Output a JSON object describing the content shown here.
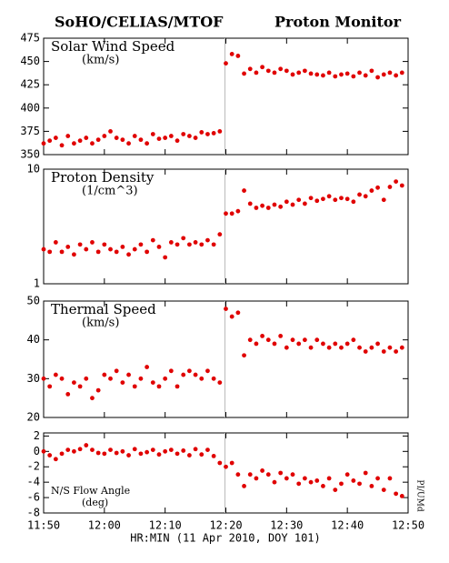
{
  "header": {
    "left": "SoHO/CELIAS/MTOF",
    "right": "Proton Monitor",
    "xlabel": "HR:MIN (11 Apr 2010, DOY 101)",
    "credit": "PI/UMd"
  },
  "chart_data": [
    {
      "type": "scatter",
      "title": "Solar Wind Speed",
      "unit": "(km/s)",
      "label_corner": "top",
      "color": "#e00000",
      "x": [
        710,
        711,
        712,
        713,
        714,
        715,
        716,
        717,
        718,
        719,
        720,
        721,
        722,
        723,
        724,
        725,
        726,
        727,
        728,
        729,
        730,
        731,
        732,
        733,
        734,
        735,
        736,
        737,
        738,
        739,
        740,
        741,
        742,
        743,
        744,
        745,
        746,
        747,
        748,
        749,
        750,
        751,
        752,
        753,
        754,
        755,
        756,
        757,
        758,
        759,
        760,
        761,
        762,
        763,
        764,
        765,
        766,
        767,
        768,
        769
      ],
      "values": [
        362,
        365,
        368,
        360,
        370,
        362,
        365,
        368,
        362,
        366,
        370,
        375,
        368,
        366,
        362,
        370,
        366,
        362,
        372,
        367,
        368,
        370,
        365,
        372,
        370,
        368,
        374,
        372,
        373,
        375,
        448,
        458,
        456,
        437,
        442,
        438,
        444,
        440,
        438,
        442,
        440,
        436,
        438,
        440,
        437,
        436,
        435,
        438,
        434,
        436,
        437,
        434,
        438,
        435,
        440,
        433,
        436,
        438,
        435,
        438
      ],
      "xlim": [
        710,
        770
      ],
      "ylim": [
        350,
        475
      ],
      "yticks": [
        350,
        375,
        400,
        425,
        450,
        475
      ]
    },
    {
      "type": "scatter",
      "title": "Proton Density",
      "unit": "(1/cm^3)",
      "label_corner": "top",
      "color": "#e00000",
      "log": true,
      "x": [
        710,
        711,
        712,
        713,
        714,
        715,
        716,
        717,
        718,
        719,
        720,
        721,
        722,
        723,
        724,
        725,
        726,
        727,
        728,
        729,
        730,
        731,
        732,
        733,
        734,
        735,
        736,
        737,
        738,
        739,
        740,
        741,
        742,
        743,
        744,
        745,
        746,
        747,
        748,
        749,
        750,
        751,
        752,
        753,
        754,
        755,
        756,
        757,
        758,
        759,
        760,
        761,
        762,
        763,
        764,
        765,
        766,
        767,
        768,
        769
      ],
      "values": [
        2.0,
        1.9,
        2.3,
        1.9,
        2.1,
        1.8,
        2.2,
        2.0,
        2.3,
        1.9,
        2.2,
        2.0,
        1.9,
        2.1,
        1.8,
        2.0,
        2.2,
        1.9,
        2.4,
        2.1,
        1.7,
        2.3,
        2.2,
        2.5,
        2.2,
        2.3,
        2.2,
        2.4,
        2.2,
        2.7,
        4.1,
        4.1,
        4.3,
        6.5,
        5.0,
        4.6,
        4.8,
        4.6,
        4.9,
        4.7,
        5.2,
        4.9,
        5.4,
        5.0,
        5.6,
        5.3,
        5.5,
        5.8,
        5.4,
        5.6,
        5.5,
        5.2,
        6.0,
        5.8,
        6.5,
        6.9,
        5.4,
        7.0,
        7.8,
        7.2
      ],
      "xlim": [
        710,
        770
      ],
      "ylim": [
        1,
        10
      ],
      "yticks": [
        1,
        10
      ]
    },
    {
      "type": "scatter",
      "title": "Thermal Speed",
      "unit": "(km/s)",
      "label_corner": "top",
      "color": "#e00000",
      "x": [
        710,
        711,
        712,
        713,
        714,
        715,
        716,
        717,
        718,
        719,
        720,
        721,
        722,
        723,
        724,
        725,
        726,
        727,
        728,
        729,
        730,
        731,
        732,
        733,
        734,
        735,
        736,
        737,
        738,
        739,
        740,
        741,
        742,
        743,
        744,
        745,
        746,
        747,
        748,
        749,
        750,
        751,
        752,
        753,
        754,
        755,
        756,
        757,
        758,
        759,
        760,
        761,
        762,
        763,
        764,
        765,
        766,
        767,
        768,
        769
      ],
      "values": [
        30,
        28,
        31,
        30,
        26,
        29,
        28,
        30,
        25,
        27,
        31,
        30,
        32,
        29,
        31,
        28,
        30,
        33,
        29,
        28,
        30,
        32,
        28,
        31,
        32,
        31,
        30,
        32,
        30,
        29,
        48,
        46,
        47,
        36,
        40,
        39,
        41,
        40,
        39,
        41,
        38,
        40,
        39,
        40,
        38,
        40,
        39,
        38,
        39,
        38,
        39,
        40,
        38,
        37,
        38,
        39,
        37,
        38,
        37,
        38
      ],
      "xlim": [
        710,
        770
      ],
      "ylim": [
        20,
        50
      ],
      "yticks": [
        20,
        30,
        40,
        50
      ]
    },
    {
      "type": "scatter",
      "title": "N/S Flow Angle",
      "unit": "(deg)",
      "label_corner": "bottom",
      "color": "#e00000",
      "x": [
        710,
        711,
        712,
        713,
        714,
        715,
        716,
        717,
        718,
        719,
        720,
        721,
        722,
        723,
        724,
        725,
        726,
        727,
        728,
        729,
        730,
        731,
        732,
        733,
        734,
        735,
        736,
        737,
        738,
        739,
        740,
        741,
        742,
        743,
        744,
        745,
        746,
        747,
        748,
        749,
        750,
        751,
        752,
        753,
        754,
        755,
        756,
        757,
        758,
        759,
        760,
        761,
        762,
        763,
        764,
        765,
        766,
        767,
        768,
        769
      ],
      "values": [
        0,
        -0.5,
        -1,
        -0.3,
        0.2,
        0,
        0.3,
        0.8,
        0.2,
        -0.2,
        -0.3,
        0.2,
        -0.2,
        0,
        -0.5,
        0.3,
        -0.3,
        -0.1,
        0.2,
        -0.4,
        0,
        0.2,
        -0.3,
        0.1,
        -0.5,
        0.3,
        -0.4,
        0.2,
        -0.6,
        -1.5,
        -2,
        -1.5,
        -3,
        -4.5,
        -3,
        -3.5,
        -2.5,
        -3,
        -4,
        -2.8,
        -3.5,
        -3,
        -4.2,
        -3.5,
        -4,
        -3.8,
        -4.5,
        -3.5,
        -5,
        -4.2,
        -3,
        -3.8,
        -4.2,
        -2.8,
        -4.5,
        -3.5,
        -5,
        -3.5,
        -5.5,
        -5.8
      ],
      "xlim": [
        710,
        770
      ],
      "ylim": [
        -8,
        2.4
      ],
      "yticks": [
        -8,
        -6,
        -4,
        -2,
        0,
        2
      ],
      "xticks": [
        {
          "value": 710,
          "label": "11:50"
        },
        {
          "value": 720,
          "label": "12:00"
        },
        {
          "value": 730,
          "label": "12:10"
        },
        {
          "value": 740,
          "label": "12:20"
        },
        {
          "value": 750,
          "label": "12:30"
        },
        {
          "value": 760,
          "label": "12:40"
        },
        {
          "value": 770,
          "label": "12:50"
        }
      ]
    }
  ]
}
